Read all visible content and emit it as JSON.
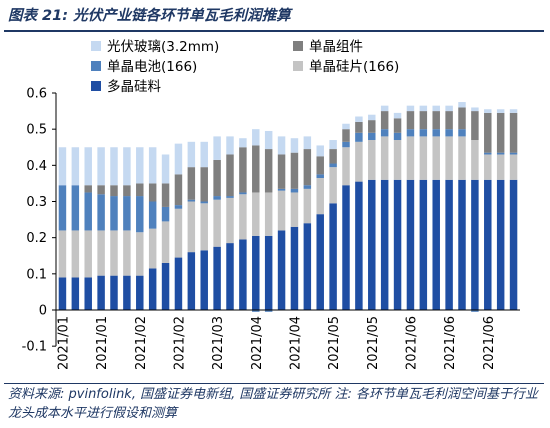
{
  "figure_title": "图表 21:  光伏产业链各环节单瓦毛利润推算",
  "footnote": "资料来源: pvinfolink, 国盛证券电新组, 国盛证券研究所  注: 各环节单瓦毛利润空间基于行业龙头成本水平进行假设和测算",
  "chart_data": {
    "type": "bar",
    "stacked": true,
    "title": "",
    "xlabel": "",
    "ylabel": "",
    "ylim": [
      -0.1,
      0.6
    ],
    "yticks": [
      "0.6",
      "0.5",
      "0.4",
      "0.3",
      "0.2",
      "0.1",
      "0",
      "-0.1"
    ],
    "ytick_values": [
      0.6,
      0.5,
      0.4,
      0.3,
      0.2,
      0.1,
      0,
      -0.1
    ],
    "grid": false,
    "legend_position": "top-left",
    "xtick_labels": [
      "2021/01",
      "2021/01",
      "2021/02",
      "2021/02",
      "2021/03",
      "2021/04",
      "2021/04",
      "2021/05",
      "2021/05",
      "2021/06",
      "2021/06",
      "2021/06"
    ],
    "xtick_bar_index": [
      0,
      3,
      6,
      9,
      12,
      15,
      18,
      21,
      24,
      27,
      30,
      33
    ],
    "categories": [
      "2021/01-1",
      "2021/01-2",
      "2021/01-3",
      "2021/01-4",
      "2021/02-1",
      "2021/02-2",
      "2021/02-3",
      "2021/02-4",
      "2021/02-5",
      "2021/03-1",
      "2021/03-2",
      "2021/03-3",
      "2021/03-4",
      "2021/03-5",
      "2021/04-1",
      "2021/04-2",
      "2021/04-3",
      "2021/04-4",
      "2021/04-5",
      "2021/05-1",
      "2021/05-2",
      "2021/05-3",
      "2021/05-4",
      "2021/05-5",
      "2021/05-6",
      "2021/06-1",
      "2021/06-2",
      "2021/06-3",
      "2021/06-4",
      "2021/06-5",
      "2021/06-6",
      "2021/06-7",
      "2021/06-8",
      "2021/06-9",
      "2021/06-10",
      "2021/06-11"
    ],
    "series": [
      {
        "name": "多晶硅料",
        "color": "#1f4ea3",
        "values": [
          0.09,
          0.09,
          0.09,
          0.095,
          0.095,
          0.095,
          0.095,
          0.115,
          0.13,
          0.145,
          0.16,
          0.165,
          0.175,
          0.185,
          0.195,
          0.205,
          0.205,
          0.22,
          0.23,
          0.24,
          0.265,
          0.295,
          0.345,
          0.355,
          0.36,
          0.36,
          0.36,
          0.36,
          0.36,
          0.36,
          0.36,
          0.36,
          0.36,
          0.36,
          0.36,
          0.36
        ]
      },
      {
        "name": "单晶硅片(166)",
        "color": "#c4c4c4",
        "values": [
          0.13,
          0.13,
          0.13,
          0.125,
          0.125,
          0.125,
          0.12,
          0.11,
          0.115,
          0.135,
          0.14,
          0.13,
          0.13,
          0.125,
          0.125,
          0.12,
          0.12,
          0.11,
          0.095,
          0.095,
          0.1,
          0.1,
          0.105,
          0.11,
          0.11,
          0.12,
          0.11,
          0.12,
          0.12,
          0.12,
          0.12,
          0.12,
          0.11,
          0.07,
          0.07,
          0.07
        ]
      },
      {
        "name": "单晶电池(166)",
        "color": "#4f81bd",
        "values": [
          0.125,
          0.125,
          0.105,
          0.1,
          0.095,
          0.095,
          0.1,
          0.075,
          0.04,
          0.01,
          0.005,
          0.005,
          0.01,
          0.005,
          0.005,
          -0.005,
          -0.005,
          0.005,
          0.01,
          0.01,
          0.01,
          0.01,
          0.015,
          0.025,
          0.02,
          0.02,
          0.02,
          0.02,
          0.02,
          0.02,
          0.02,
          0.02,
          -0.005,
          0.005,
          0.005,
          0.005
        ]
      },
      {
        "name": "单晶组件",
        "color": "#7f7f7f",
        "values": [
          0,
          0,
          0.02,
          0.025,
          0.03,
          0.03,
          0.035,
          0.05,
          0.065,
          0.085,
          0.09,
          0.095,
          0.1,
          0.115,
          0.125,
          0.13,
          0.12,
          0.095,
          0.1,
          0.1,
          0.05,
          0.04,
          0.035,
          0.03,
          0.035,
          0.05,
          0.04,
          0.05,
          0.05,
          0.05,
          0.05,
          0.06,
          0.08,
          0.11,
          0.11,
          0.11
        ]
      },
      {
        "name": "光伏玻璃(3.2mm)",
        "color": "#c5d9f1",
        "values": [
          0.105,
          0.105,
          0.105,
          0.105,
          0.105,
          0.105,
          0.1,
          0.1,
          0.08,
          0.085,
          0.07,
          0.07,
          0.065,
          0.05,
          0.025,
          0.045,
          0.05,
          0.05,
          0.04,
          0.035,
          0.03,
          0.025,
          0.015,
          0.015,
          0.015,
          0.015,
          0.015,
          0.015,
          0.015,
          0.015,
          0.015,
          0.015,
          0.01,
          0.01,
          0.01,
          0.01
        ]
      }
    ],
    "legend_order": [
      "光伏玻璃(3.2mm)",
      "单晶组件",
      "单晶电池(166)",
      "单晶硅片(166)",
      "多晶硅料"
    ]
  }
}
